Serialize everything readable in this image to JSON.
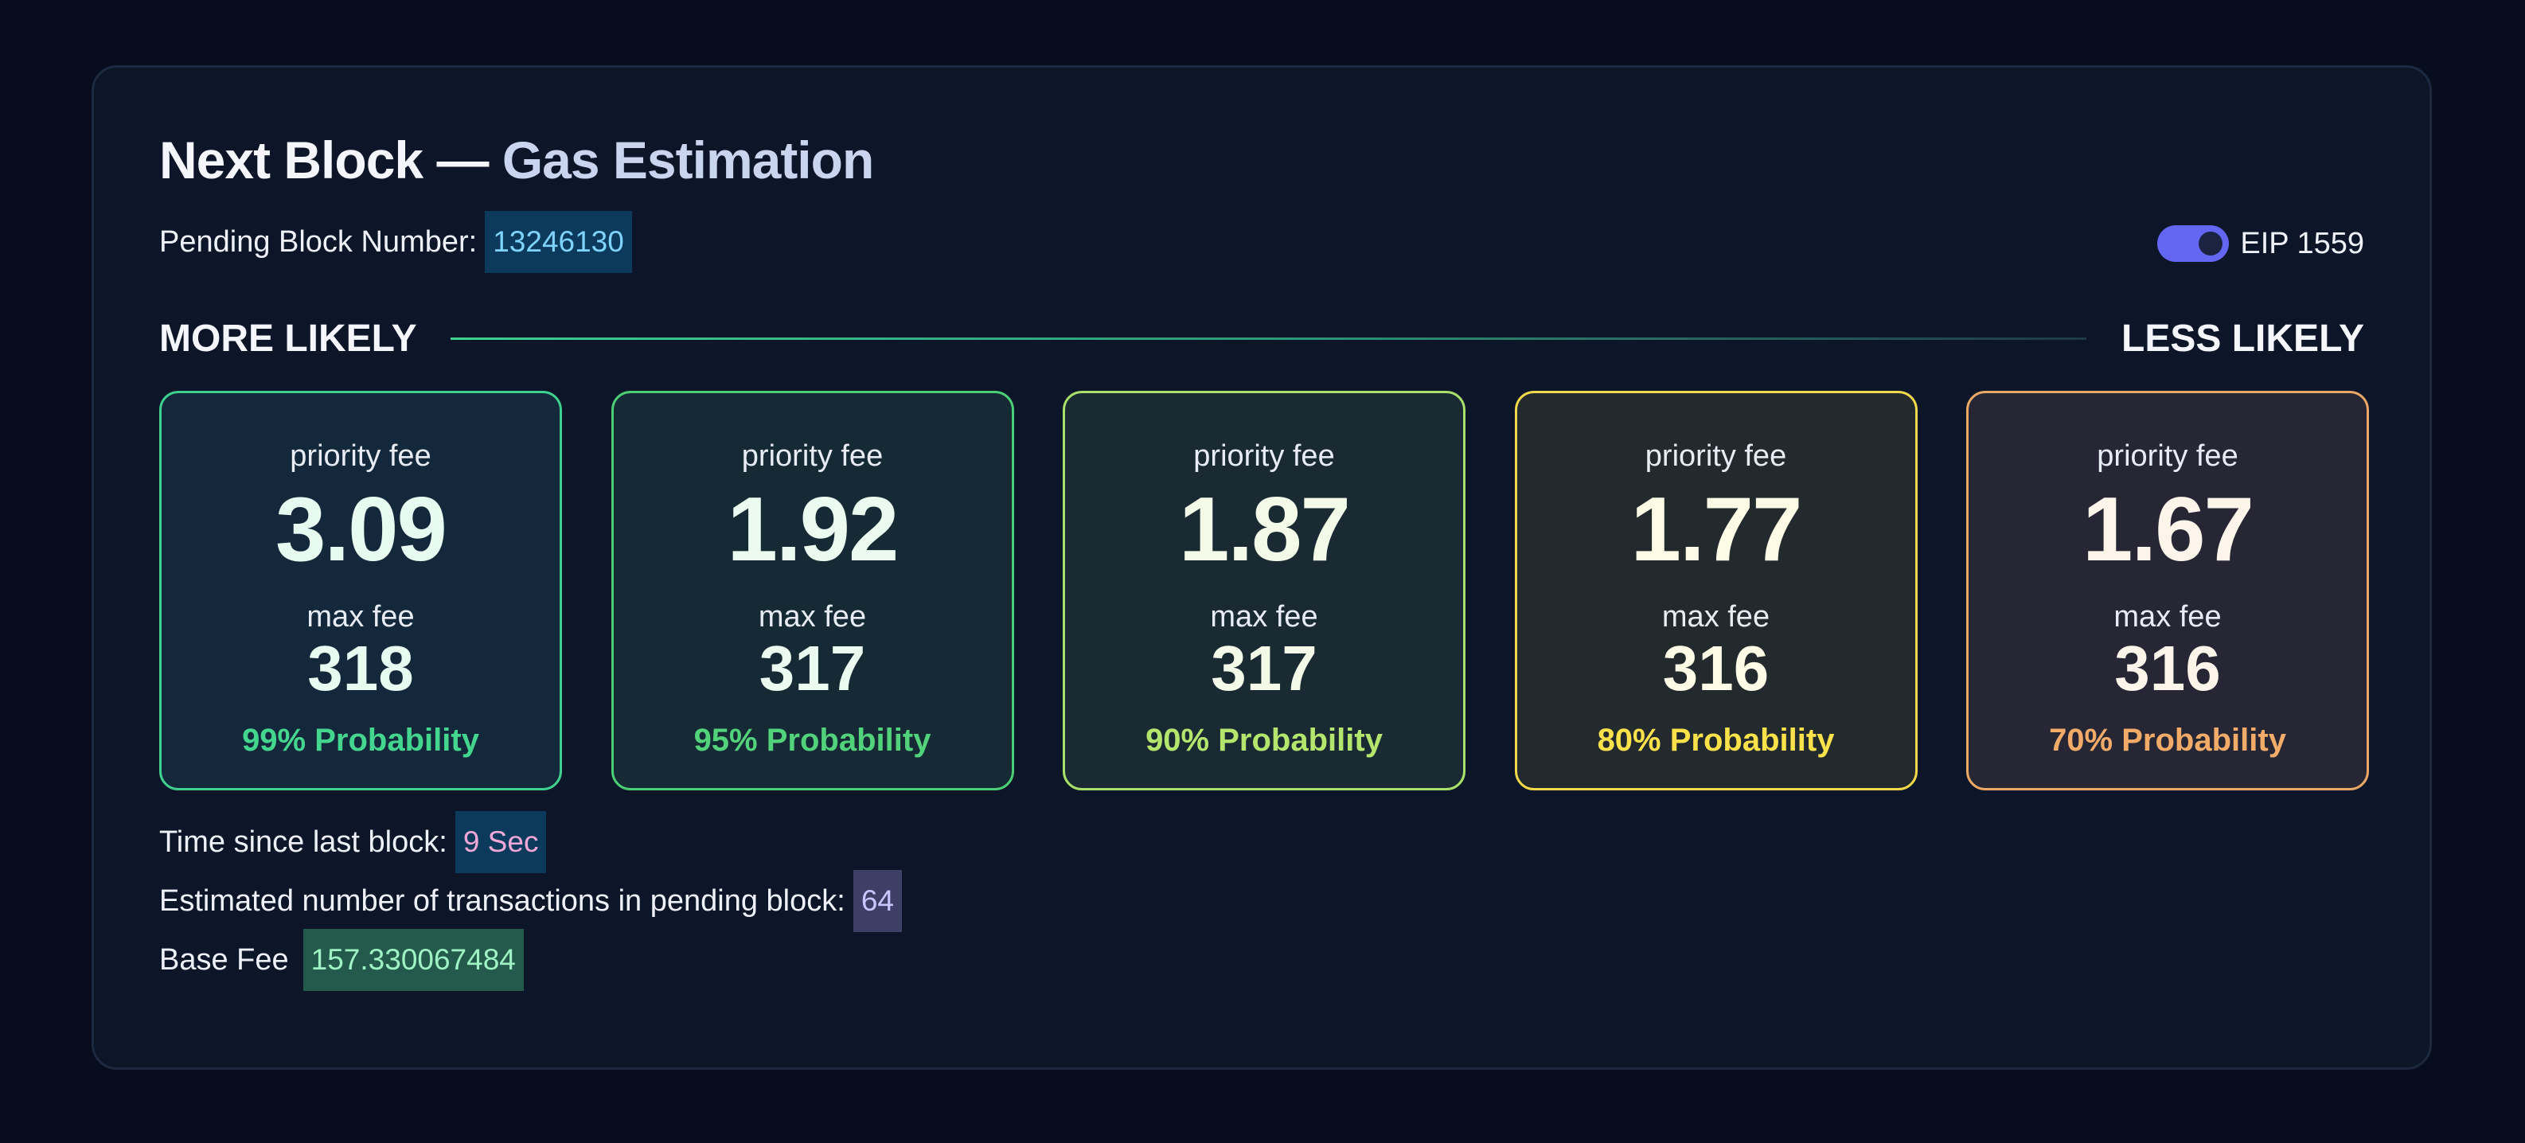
{
  "header": {
    "title_main": "Next Block —",
    "title_accent": "Gas Estimation"
  },
  "pending": {
    "label": "Pending Block Number:",
    "value": "13246130"
  },
  "toggle": {
    "label": "EIP 1559",
    "enabled": true
  },
  "scale": {
    "left_label": "MORE LIKELY",
    "right_label": "LESS LIKELY"
  },
  "cards": [
    {
      "priority_label": "priority fee",
      "priority_value": "3.09",
      "max_label": "max fee",
      "max_value": "318",
      "probability": "99% Probability"
    },
    {
      "priority_label": "priority fee",
      "priority_value": "1.92",
      "max_label": "max fee",
      "max_value": "317",
      "probability": "95% Probability"
    },
    {
      "priority_label": "priority fee",
      "priority_value": "1.87",
      "max_label": "max fee",
      "max_value": "317",
      "probability": "90% Probability"
    },
    {
      "priority_label": "priority fee",
      "priority_value": "1.77",
      "max_label": "max fee",
      "max_value": "316",
      "probability": "80% Probability"
    },
    {
      "priority_label": "priority fee",
      "priority_value": "1.67",
      "max_label": "max fee",
      "max_value": "316",
      "probability": "70% Probability"
    }
  ],
  "info": {
    "time_label": "Time since last block:",
    "time_value": "9 Sec",
    "tx_label": "Estimated number of transactions in pending block:",
    "tx_value": "64",
    "base_label": "Base Fee",
    "base_value": "157.330067484"
  },
  "colors": {
    "background": "#070d1e",
    "panel": "#0d1529",
    "accent_toggle": "#6366f1",
    "prob_99": "#44d68f",
    "prob_95": "#52d27a",
    "prob_90": "#b4e66e",
    "prob_80": "#fbe14a",
    "prob_70": "#f2ab68"
  }
}
